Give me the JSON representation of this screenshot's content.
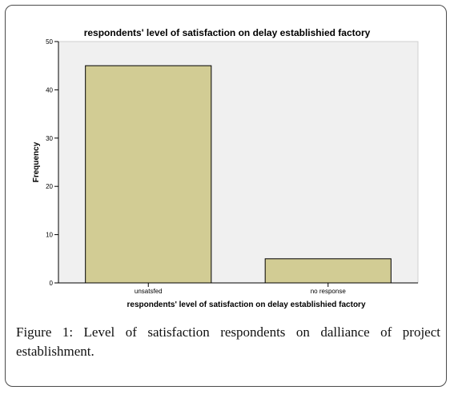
{
  "caption": {
    "label": "Figure 1:",
    "text": " Level of satisfaction respondents on dalliance of project establishment."
  },
  "colors": {
    "bar_fill": "#D2CC94",
    "bar_stroke": "#000000",
    "plot_bg": "#F0F0F0"
  },
  "chart_data": {
    "type": "bar",
    "title": "respondents' level of satisfaction on delay establishied factory",
    "xlabel": "respondents' level of satisfaction on delay establishied factory",
    "ylabel": "Frequency",
    "categories": [
      "unsatsfed",
      "no response"
    ],
    "values": [
      45,
      5
    ],
    "ylim": [
      0,
      50
    ],
    "yticks": [
      0,
      10,
      20,
      30,
      40,
      50
    ],
    "grid": false,
    "legend": "none"
  }
}
